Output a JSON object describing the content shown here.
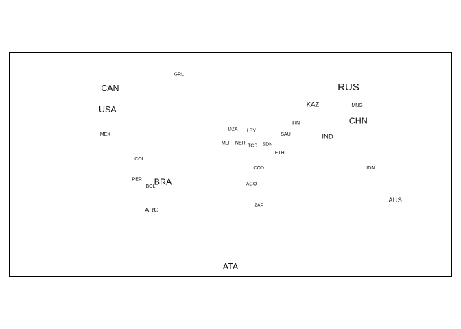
{
  "chart_data": {
    "type": "scatter",
    "title": "",
    "xlabel": "",
    "ylabel": "",
    "grid": false,
    "legend": "none",
    "point_style": "text labels sized by country area",
    "xlim": [
      -180,
      180
    ],
    "ylim": [
      -90,
      90
    ],
    "points": [
      {
        "label": "GRL",
        "x": -42,
        "y": 72,
        "size": 1
      },
      {
        "label": "CAN",
        "x": -98,
        "y": 61,
        "size": 3
      },
      {
        "label": "USA",
        "x": -100,
        "y": 44,
        "size": 3
      },
      {
        "label": "MEX",
        "x": -102,
        "y": 24,
        "size": 1
      },
      {
        "label": "RUS",
        "x": 96,
        "y": 62,
        "size": 4
      },
      {
        "label": "KAZ",
        "x": 67,
        "y": 48,
        "size": 2
      },
      {
        "label": "MNG",
        "x": 103,
        "y": 47,
        "size": 1
      },
      {
        "label": "CHN",
        "x": 104,
        "y": 35,
        "size": 3
      },
      {
        "label": "IRN",
        "x": 53,
        "y": 33,
        "size": 1
      },
      {
        "label": "SAU",
        "x": 45,
        "y": 24,
        "size": 1
      },
      {
        "label": "IND",
        "x": 79,
        "y": 22,
        "size": 2
      },
      {
        "label": "DZA",
        "x": 2,
        "y": 28,
        "size": 1
      },
      {
        "label": "LBY",
        "x": 17,
        "y": 27,
        "size": 1
      },
      {
        "label": "MLI",
        "x": -4,
        "y": 17,
        "size": 1
      },
      {
        "label": "NER",
        "x": 8,
        "y": 17,
        "size": 1
      },
      {
        "label": "TCD",
        "x": 18,
        "y": 15,
        "size": 1
      },
      {
        "label": "SDN",
        "x": 30,
        "y": 16,
        "size": 1
      },
      {
        "label": "ETH",
        "x": 40,
        "y": 9,
        "size": 1
      },
      {
        "label": "COL",
        "x": -74,
        "y": 4,
        "size": 1
      },
      {
        "label": "COD",
        "x": 23,
        "y": -3,
        "size": 1
      },
      {
        "label": "IDN",
        "x": 114,
        "y": -3,
        "size": 1
      },
      {
        "label": "PER",
        "x": -76,
        "y": -12,
        "size": 1
      },
      {
        "label": "BRA",
        "x": -55,
        "y": -14,
        "size": 3
      },
      {
        "label": "AGO",
        "x": 17,
        "y": -16,
        "size": 1
      },
      {
        "label": "BOL",
        "x": -65,
        "y": -18,
        "size": 1
      },
      {
        "label": "AUS",
        "x": 134,
        "y": -29,
        "size": 2
      },
      {
        "label": "ZAF",
        "x": 23,
        "y": -33,
        "size": 1
      },
      {
        "label": "ARG",
        "x": -64,
        "y": -37,
        "size": 2
      },
      {
        "label": "ATA",
        "x": 0,
        "y": -82,
        "size": 3
      }
    ]
  }
}
